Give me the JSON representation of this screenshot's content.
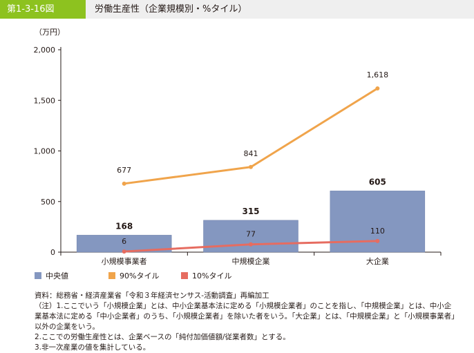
{
  "header": {
    "figure_number": "第1-3-16図",
    "title": "労働生産性（企業規模別・%タイル）"
  },
  "colors": {
    "median": "#8497c0",
    "p90": "#f0a44b",
    "p10": "#e66c60",
    "header_accent": "#8dc21f"
  },
  "chart_data": {
    "type": "bar",
    "ylabel": "（万円）",
    "ylim": [
      0,
      2000
    ],
    "yticks": [
      0,
      500,
      1000,
      1500,
      2000
    ],
    "yticklabels": [
      "0",
      "500",
      "1,000",
      "1,500",
      "2,000"
    ],
    "categories": [
      "小規模事業者",
      "中規模企業",
      "大企業"
    ],
    "series": [
      {
        "name": "中央値",
        "type": "bar",
        "values": [
          168,
          315,
          605
        ],
        "labels": [
          "168",
          "315",
          "605"
        ]
      },
      {
        "name": "90%タイル",
        "type": "line",
        "values": [
          677,
          841,
          1618
        ],
        "labels": [
          "677",
          "841",
          "1,618"
        ]
      },
      {
        "name": "10%タイル",
        "type": "line",
        "values": [
          6,
          77,
          110
        ],
        "labels": [
          "6",
          "77",
          "110"
        ]
      }
    ],
    "legend_position": "bottom-left"
  },
  "notes": {
    "source": "資料：総務省・経済産業省「令和３年経済センサス-活動調査」再編加工",
    "note1_a": "（注）1.ここでいう「小規模企業」とは、中小企業基本法に定める「小規模企業者」のことを指し、「中規模企業」とは、中小企",
    "note1_b": "業基本法に定める「中小企業者」のうち、「小規模企業者」を除いた者をいう。「大企業」とは、「中規模企業」と「小規模事業者」",
    "note1_c": "以外の企業をいう。",
    "note2": "2.ここでの労働生産性とは、企業ベースの「純付加価値額/従業者数」とする。",
    "note3": "3.非一次産業の値を集計している。"
  }
}
